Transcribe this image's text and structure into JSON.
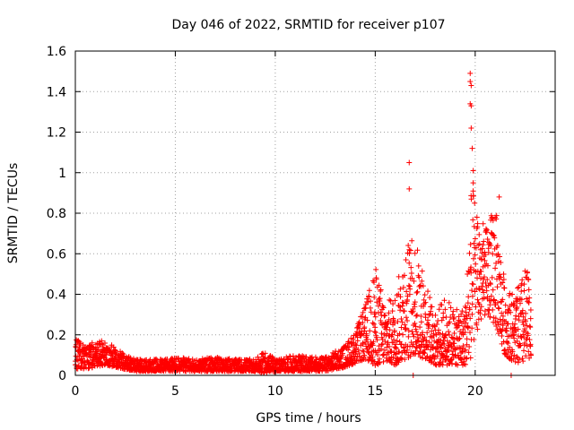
{
  "chart_data": {
    "type": "scatter",
    "title": "Day 046 of 2022, SRMTID for receiver p107",
    "xlabel": "GPS time / hours",
    "ylabel": "SRMTID / TECUs",
    "xlim": [
      0,
      24
    ],
    "ylim": [
      0,
      1.6
    ],
    "xticks": [
      0,
      5,
      10,
      15,
      20
    ],
    "xtick_labels": [
      "0",
      "5",
      "10",
      "15",
      "20"
    ],
    "yticks": [
      0,
      0.2,
      0.4,
      0.6,
      0.8,
      1,
      1.2,
      1.4,
      1.6
    ],
    "ytick_labels": [
      "0",
      "0.2",
      "0.4",
      "0.6",
      "0.8",
      "1",
      "1.2",
      "1.4",
      "1.6"
    ],
    "grid": true,
    "marker": "+",
    "color": "#ff0000",
    "envelope": [
      {
        "x": 0.0,
        "low": 0.03,
        "high": 0.19
      },
      {
        "x": 0.5,
        "low": 0.03,
        "high": 0.14
      },
      {
        "x": 1.0,
        "low": 0.04,
        "high": 0.17
      },
      {
        "x": 1.5,
        "low": 0.05,
        "high": 0.17
      },
      {
        "x": 2.0,
        "low": 0.04,
        "high": 0.14
      },
      {
        "x": 2.5,
        "low": 0.03,
        "high": 0.1
      },
      {
        "x": 3.0,
        "low": 0.02,
        "high": 0.08
      },
      {
        "x": 4.0,
        "low": 0.02,
        "high": 0.08
      },
      {
        "x": 5.0,
        "low": 0.02,
        "high": 0.09
      },
      {
        "x": 6.0,
        "low": 0.02,
        "high": 0.08
      },
      {
        "x": 7.0,
        "low": 0.02,
        "high": 0.09
      },
      {
        "x": 8.0,
        "low": 0.02,
        "high": 0.08
      },
      {
        "x": 9.0,
        "low": 0.02,
        "high": 0.08
      },
      {
        "x": 9.5,
        "low": 0.01,
        "high": 0.12
      },
      {
        "x": 10.0,
        "low": 0.02,
        "high": 0.08
      },
      {
        "x": 11.0,
        "low": 0.02,
        "high": 0.1
      },
      {
        "x": 12.0,
        "low": 0.02,
        "high": 0.09
      },
      {
        "x": 12.5,
        "low": 0.02,
        "high": 0.09
      },
      {
        "x": 13.0,
        "low": 0.03,
        "high": 0.12
      },
      {
        "x": 13.5,
        "low": 0.04,
        "high": 0.15
      },
      {
        "x": 14.0,
        "low": 0.06,
        "high": 0.22
      },
      {
        "x": 14.5,
        "low": 0.08,
        "high": 0.35
      },
      {
        "x": 15.0,
        "low": 0.05,
        "high": 0.54
      },
      {
        "x": 15.5,
        "low": 0.06,
        "high": 0.36
      },
      {
        "x": 16.0,
        "low": 0.05,
        "high": 0.4
      },
      {
        "x": 16.5,
        "low": 0.08,
        "high": 0.66
      },
      {
        "x": 17.0,
        "low": 0.1,
        "high": 0.68
      },
      {
        "x": 17.5,
        "low": 0.08,
        "high": 0.48
      },
      {
        "x": 18.0,
        "low": 0.05,
        "high": 0.3
      },
      {
        "x": 18.5,
        "low": 0.05,
        "high": 0.4
      },
      {
        "x": 19.0,
        "low": 0.05,
        "high": 0.32
      },
      {
        "x": 19.5,
        "low": 0.05,
        "high": 0.35
      },
      {
        "x": 19.8,
        "low": 0.08,
        "high": 0.95
      },
      {
        "x": 20.0,
        "low": 0.2,
        "high": 0.9
      },
      {
        "x": 20.5,
        "low": 0.3,
        "high": 0.72
      },
      {
        "x": 21.0,
        "low": 0.25,
        "high": 0.85
      },
      {
        "x": 21.5,
        "low": 0.1,
        "high": 0.45
      },
      {
        "x": 22.0,
        "low": 0.06,
        "high": 0.4
      },
      {
        "x": 22.5,
        "low": 0.05,
        "high": 0.53
      },
      {
        "x": 22.8,
        "low": 0.1,
        "high": 0.5
      }
    ],
    "notable_points": [
      {
        "x": 16.7,
        "y": 1.05
      },
      {
        "x": 16.7,
        "y": 0.92
      },
      {
        "x": 16.9,
        "y": 0.0
      },
      {
        "x": 19.75,
        "y": 1.49
      },
      {
        "x": 19.75,
        "y": 1.45
      },
      {
        "x": 19.8,
        "y": 1.43
      },
      {
        "x": 19.75,
        "y": 1.34
      },
      {
        "x": 19.8,
        "y": 1.33
      },
      {
        "x": 19.8,
        "y": 1.22
      },
      {
        "x": 19.85,
        "y": 1.12
      },
      {
        "x": 19.9,
        "y": 1.01
      },
      {
        "x": 19.9,
        "y": 0.95
      },
      {
        "x": 21.2,
        "y": 0.88
      },
      {
        "x": 21.0,
        "y": 0.78
      },
      {
        "x": 21.8,
        "y": 0.0
      },
      {
        "x": 15.0,
        "y": 0.05
      },
      {
        "x": 14.5,
        "y": 0.08
      }
    ]
  }
}
